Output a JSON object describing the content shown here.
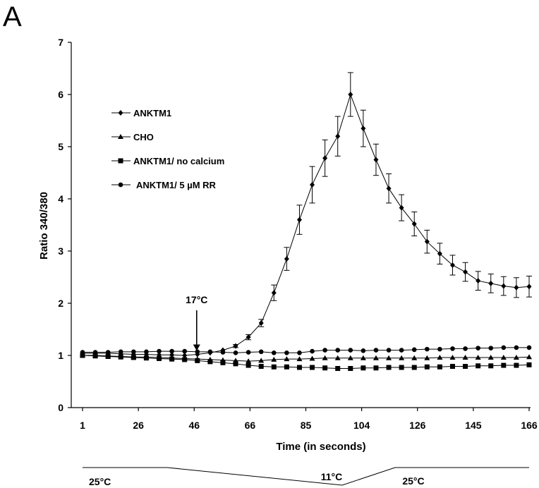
{
  "panel_label": "A",
  "chart_data": {
    "type": "line",
    "xlabel": "Time (in seconds)",
    "ylabel": "Ratio 340/380",
    "ylim": [
      0,
      7
    ],
    "yticks": [
      "0",
      "1",
      "2",
      "3",
      "4",
      "5",
      "6",
      "7"
    ],
    "xtick_labels": [
      "1",
      "26",
      "46",
      "66",
      "85",
      "104",
      "126",
      "145",
      "166"
    ],
    "grid": false,
    "legend_position": "top-left",
    "series": [
      {
        "name": "ANKTM1",
        "marker": "diamond",
        "values": [
          1.04,
          1.04,
          1.04,
          1.03,
          1.02,
          1.02,
          1.01,
          1.01,
          1.0,
          1.02,
          1.05,
          1.1,
          1.18,
          1.35,
          1.62,
          2.2,
          2.85,
          3.6,
          4.27,
          4.78,
          5.2,
          6.0,
          5.35,
          4.75,
          4.2,
          3.83,
          3.52,
          3.18,
          2.95,
          2.73,
          2.6,
          2.43,
          2.38,
          2.33,
          2.3,
          2.32
        ],
        "errors": [
          0.0,
          0.0,
          0.0,
          0.0,
          0.0,
          0.0,
          0.0,
          0.0,
          0.0,
          0.0,
          0.0,
          0.0,
          0.03,
          0.05,
          0.07,
          0.15,
          0.22,
          0.28,
          0.35,
          0.35,
          0.38,
          0.42,
          0.35,
          0.3,
          0.28,
          0.25,
          0.23,
          0.22,
          0.2,
          0.19,
          0.18,
          0.18,
          0.18,
          0.18,
          0.19,
          0.2
        ]
      },
      {
        "name": "CHO",
        "marker": "triangle",
        "values": [
          1.0,
          1.0,
          0.99,
          0.98,
          0.97,
          0.97,
          0.96,
          0.95,
          0.94,
          0.93,
          0.92,
          0.91,
          0.9,
          0.89,
          0.9,
          0.92,
          0.93,
          0.93,
          0.94,
          0.95,
          0.95,
          0.95,
          0.95,
          0.95,
          0.95,
          0.95,
          0.95,
          0.95,
          0.96,
          0.96,
          0.96,
          0.96,
          0.96,
          0.96,
          0.96,
          0.97
        ]
      },
      {
        "name": "ANKTM1/ no calcium",
        "marker": "square",
        "values": [
          1.0,
          0.99,
          0.98,
          0.97,
          0.96,
          0.95,
          0.94,
          0.93,
          0.92,
          0.9,
          0.88,
          0.86,
          0.84,
          0.81,
          0.79,
          0.78,
          0.78,
          0.77,
          0.77,
          0.76,
          0.75,
          0.75,
          0.76,
          0.76,
          0.77,
          0.77,
          0.77,
          0.78,
          0.78,
          0.79,
          0.79,
          0.8,
          0.8,
          0.81,
          0.81,
          0.82
        ]
      },
      {
        "name": "ANKTM1/ 5 µM RR",
        "marker": "circle",
        "values": [
          1.06,
          1.06,
          1.06,
          1.07,
          1.07,
          1.07,
          1.08,
          1.08,
          1.08,
          1.07,
          1.07,
          1.06,
          1.05,
          1.06,
          1.07,
          1.05,
          1.05,
          1.05,
          1.08,
          1.1,
          1.1,
          1.1,
          1.09,
          1.1,
          1.1,
          1.1,
          1.11,
          1.12,
          1.12,
          1.13,
          1.13,
          1.14,
          1.14,
          1.15,
          1.15,
          1.15
        ]
      }
    ],
    "annotations": {
      "stimulus": {
        "label": "17°C",
        "at_point_index": 9
      }
    },
    "temperature_profile": {
      "labels": [
        "25°C",
        "11°C",
        "25°C"
      ]
    }
  }
}
